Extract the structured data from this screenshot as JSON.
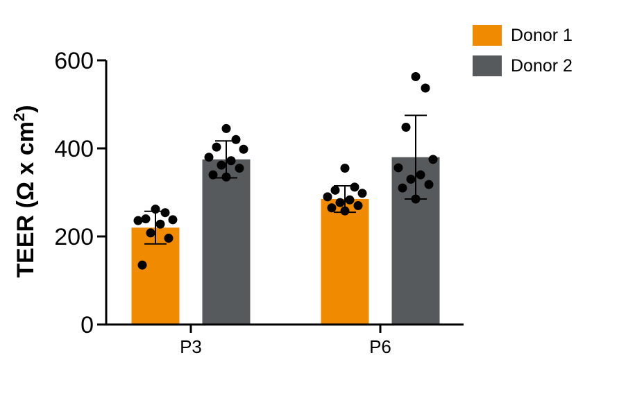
{
  "chart_data": {
    "type": "bar",
    "ylabel": "TEER (Ω x cm²)",
    "ylabel_main": "TEER (Ω x cm",
    "ylabel_sup": "2",
    "ylabel_close": ")",
    "ylim": [
      0,
      600
    ],
    "yticks": [
      "0",
      "200",
      "400",
      "600"
    ],
    "categories": [
      "P3",
      "P6"
    ],
    "legend_position": "top-right",
    "series": [
      {
        "name": "Donor 1",
        "color": "#F08A00",
        "values": [
          220,
          285
        ],
        "sd": [
          37,
          30
        ],
        "points": [
          [
            262,
            254,
            240,
            238,
            236,
            228,
            208,
            196,
            135
          ],
          [
            355,
            312,
            305,
            298,
            290,
            283,
            277,
            270,
            265,
            258
          ]
        ]
      },
      {
        "name": "Donor 2",
        "color": "#565A5C",
        "values": [
          375,
          380
        ],
        "sd": [
          42,
          95
        ],
        "points": [
          [
            445,
            420,
            403,
            398,
            380,
            372,
            362,
            355,
            340,
            335
          ],
          [
            563,
            537,
            448,
            375,
            356,
            340,
            330,
            318,
            310,
            285
          ]
        ]
      }
    ]
  }
}
